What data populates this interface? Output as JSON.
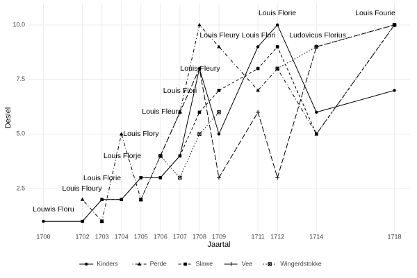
{
  "chart_data": {
    "type": "line",
    "x_label": "Jaartal",
    "y_label": "Desiel",
    "x": [
      1700,
      1702,
      1703,
      1704,
      1705,
      1706,
      1707,
      1708,
      1709,
      1711,
      1712,
      1714,
      1718
    ],
    "series": [
      {
        "name": "Kinders",
        "color": "#000000",
        "linestyle": "solid",
        "marker": "circle",
        "values": [
          1,
          1,
          2,
          2,
          3,
          3,
          4,
          8,
          5,
          9,
          10,
          6,
          7
        ]
      },
      {
        "name": "Perde",
        "color": "#000000",
        "linestyle": "dotdash",
        "marker": "triangle",
        "values": [
          null,
          2,
          1,
          5,
          2,
          4,
          6,
          10,
          9,
          7,
          8,
          5,
          10
        ]
      },
      {
        "name": "Slawe",
        "color": "#000000",
        "linestyle": "dashed",
        "marker": "square",
        "values": [
          null,
          1,
          2,
          2,
          3,
          3,
          4,
          6,
          7,
          8,
          9,
          5,
          10
        ]
      },
      {
        "name": "Vee",
        "color": "#000000",
        "linestyle": "longdash",
        "marker": "plus",
        "values": [
          null,
          null,
          null,
          null,
          null,
          4,
          6,
          8,
          3,
          6,
          3,
          9,
          10
        ]
      },
      {
        "name": "Wingerdstokke",
        "color": "#000000",
        "linestyle": "dotted",
        "marker": "squarex",
        "values": [
          null,
          null,
          1,
          null,
          2,
          4,
          3,
          5,
          6,
          null,
          8,
          9,
          10
        ]
      }
    ],
    "annotations": [
      "Louwis Floru",
      "Louis Floury",
      "Louis Florie",
      "Louis Florje",
      "Louis Flory",
      "Louis Fleurr",
      "Louis Flori",
      "Louis Fleury",
      "Louis Fleury",
      "Louis Flori",
      "Louis Florie",
      "Ludovicus Florius",
      "Louis Fourie"
    ],
    "xlim": [
      1699.2,
      1718.8
    ],
    "ylim": [
      0.5,
      11
    ],
    "xticks": [
      1700,
      1702,
      1703,
      1704,
      1705,
      1706,
      1707,
      1708,
      1709,
      1711,
      1712,
      1714,
      1718
    ],
    "yticks": [
      {
        "value": 2.5,
        "label": "2.5"
      },
      {
        "value": 5,
        "label": "5.0"
      },
      {
        "value": 7.5,
        "label": "7.5"
      },
      {
        "value": 10,
        "label": "10.0"
      }
    ],
    "grid": true,
    "legend": "bottom"
  }
}
